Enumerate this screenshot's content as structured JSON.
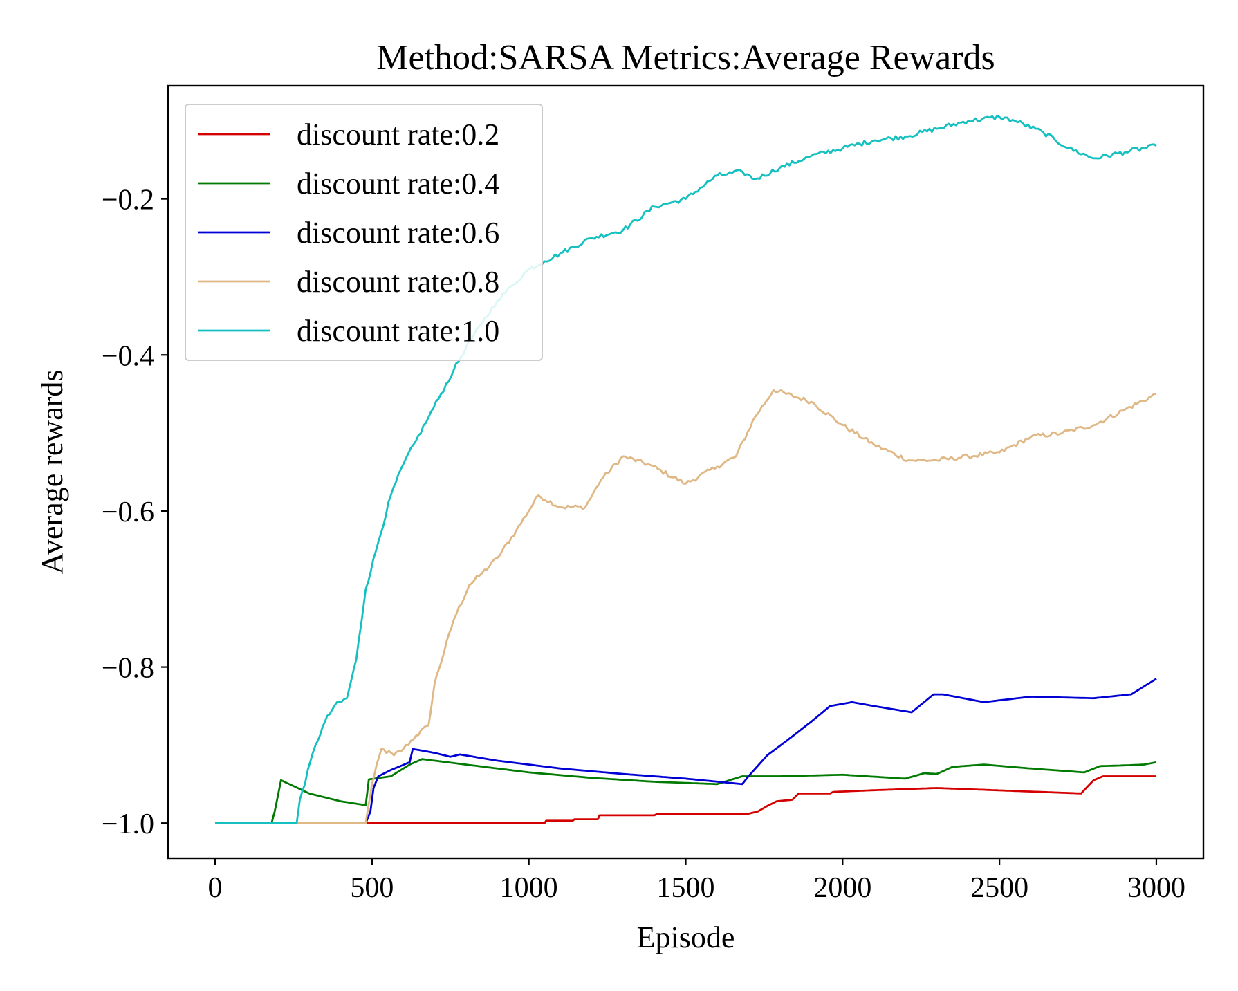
{
  "chart_data": {
    "type": "line",
    "title": "Method:SARSA   Metrics:Average Rewards",
    "xlabel": "Episode",
    "ylabel": "Average rewards",
    "xlim": [
      -150,
      3150
    ],
    "ylim": [
      -1.045,
      -0.055
    ],
    "xticks": [
      0,
      500,
      1000,
      1500,
      2000,
      2500,
      3000
    ],
    "xtick_labels": [
      "0",
      "500",
      "1000",
      "1500",
      "2000",
      "2500",
      "3000"
    ],
    "yticks": [
      -1.0,
      -0.8,
      -0.6,
      -0.4,
      -0.2
    ],
    "ytick_labels": [
      "−1.0",
      "−0.8",
      "−0.6",
      "−0.4",
      "−0.2"
    ],
    "grid": false,
    "legend_position": "top-left",
    "series": [
      {
        "name": "discount rate:0.2",
        "color": "#d40000",
        "points": [
          [
            0,
            -1.0
          ],
          [
            480,
            -1.0
          ],
          [
            1050,
            -1.0
          ],
          [
            1055,
            -0.997
          ],
          [
            1140,
            -0.997
          ],
          [
            1145,
            -0.995
          ],
          [
            1220,
            -0.995
          ],
          [
            1225,
            -0.99
          ],
          [
            1400,
            -0.99
          ],
          [
            1410,
            -0.988
          ],
          [
            1700,
            -0.988
          ],
          [
            1730,
            -0.985
          ],
          [
            1760,
            -0.978
          ],
          [
            1790,
            -0.972
          ],
          [
            1840,
            -0.97
          ],
          [
            1860,
            -0.962
          ],
          [
            1960,
            -0.962
          ],
          [
            1970,
            -0.96
          ],
          [
            2090,
            -0.958
          ],
          [
            2300,
            -0.955
          ],
          [
            2760,
            -0.962
          ],
          [
            2800,
            -0.945
          ],
          [
            2830,
            -0.94
          ],
          [
            3000,
            -0.94
          ]
        ]
      },
      {
        "name": "discount rate:0.4",
        "color": "#007a00",
        "points": [
          [
            0,
            -1.0
          ],
          [
            180,
            -1.0
          ],
          [
            190,
            -0.985
          ],
          [
            200,
            -0.965
          ],
          [
            210,
            -0.945
          ],
          [
            300,
            -0.962
          ],
          [
            400,
            -0.972
          ],
          [
            480,
            -0.977
          ],
          [
            490,
            -0.944
          ],
          [
            560,
            -0.94
          ],
          [
            620,
            -0.925
          ],
          [
            660,
            -0.918
          ],
          [
            800,
            -0.925
          ],
          [
            1000,
            -0.935
          ],
          [
            1200,
            -0.942
          ],
          [
            1400,
            -0.947
          ],
          [
            1600,
            -0.95
          ],
          [
            1680,
            -0.94
          ],
          [
            1800,
            -0.94
          ],
          [
            2000,
            -0.938
          ],
          [
            2200,
            -0.943
          ],
          [
            2260,
            -0.936
          ],
          [
            2300,
            -0.937
          ],
          [
            2350,
            -0.928
          ],
          [
            2450,
            -0.925
          ],
          [
            2600,
            -0.93
          ],
          [
            2770,
            -0.935
          ],
          [
            2820,
            -0.927
          ],
          [
            2900,
            -0.926
          ],
          [
            2960,
            -0.925
          ],
          [
            3000,
            -0.922
          ]
        ]
      },
      {
        "name": "discount rate:0.6",
        "color": "#0000d4",
        "points": [
          [
            0,
            -1.0
          ],
          [
            480,
            -1.0
          ],
          [
            495,
            -0.985
          ],
          [
            505,
            -0.955
          ],
          [
            520,
            -0.94
          ],
          [
            560,
            -0.932
          ],
          [
            620,
            -0.922
          ],
          [
            630,
            -0.905
          ],
          [
            700,
            -0.91
          ],
          [
            750,
            -0.915
          ],
          [
            780,
            -0.912
          ],
          [
            900,
            -0.92
          ],
          [
            1100,
            -0.93
          ],
          [
            1300,
            -0.937
          ],
          [
            1500,
            -0.943
          ],
          [
            1680,
            -0.95
          ],
          [
            1700,
            -0.94
          ],
          [
            1760,
            -0.913
          ],
          [
            1820,
            -0.895
          ],
          [
            1900,
            -0.87
          ],
          [
            1960,
            -0.85
          ],
          [
            2030,
            -0.845
          ],
          [
            2100,
            -0.85
          ],
          [
            2220,
            -0.858
          ],
          [
            2290,
            -0.835
          ],
          [
            2320,
            -0.835
          ],
          [
            2450,
            -0.845
          ],
          [
            2600,
            -0.838
          ],
          [
            2800,
            -0.84
          ],
          [
            2920,
            -0.835
          ],
          [
            2960,
            -0.825
          ],
          [
            3000,
            -0.815
          ]
        ]
      },
      {
        "name": "discount rate:0.8",
        "color": "#dfb885",
        "points": [
          [
            0,
            -1.0
          ],
          [
            480,
            -1.0
          ],
          [
            500,
            -0.95
          ],
          [
            530,
            -0.905
          ],
          [
            570,
            -0.913
          ],
          [
            600,
            -0.905
          ],
          [
            640,
            -0.888
          ],
          [
            680,
            -0.875
          ],
          [
            700,
            -0.82
          ],
          [
            760,
            -0.74
          ],
          [
            810,
            -0.695
          ],
          [
            850,
            -0.68
          ],
          [
            900,
            -0.66
          ],
          [
            960,
            -0.625
          ],
          [
            1030,
            -0.58
          ],
          [
            1100,
            -0.595
          ],
          [
            1180,
            -0.595
          ],
          [
            1230,
            -0.56
          ],
          [
            1300,
            -0.53
          ],
          [
            1380,
            -0.54
          ],
          [
            1500,
            -0.565
          ],
          [
            1600,
            -0.543
          ],
          [
            1660,
            -0.53
          ],
          [
            1720,
            -0.48
          ],
          [
            1780,
            -0.445
          ],
          [
            1900,
            -0.46
          ],
          [
            2000,
            -0.49
          ],
          [
            2100,
            -0.515
          ],
          [
            2210,
            -0.535
          ],
          [
            2300,
            -0.535
          ],
          [
            2400,
            -0.53
          ],
          [
            2500,
            -0.525
          ],
          [
            2600,
            -0.505
          ],
          [
            2700,
            -0.5
          ],
          [
            2800,
            -0.49
          ],
          [
            2900,
            -0.47
          ],
          [
            3000,
            -0.45
          ]
        ]
      },
      {
        "name": "discount rate:1.0",
        "color": "#16c0c0",
        "points": [
          [
            0,
            -1.0
          ],
          [
            260,
            -1.0
          ],
          [
            270,
            -0.97
          ],
          [
            320,
            -0.9
          ],
          [
            350,
            -0.87
          ],
          [
            380,
            -0.85
          ],
          [
            420,
            -0.84
          ],
          [
            450,
            -0.79
          ],
          [
            480,
            -0.7
          ],
          [
            520,
            -0.64
          ],
          [
            560,
            -0.58
          ],
          [
            600,
            -0.54
          ],
          [
            640,
            -0.51
          ],
          [
            680,
            -0.48
          ],
          [
            720,
            -0.45
          ],
          [
            760,
            -0.42
          ],
          [
            800,
            -0.39
          ],
          [
            850,
            -0.36
          ],
          [
            900,
            -0.33
          ],
          [
            950,
            -0.31
          ],
          [
            1000,
            -0.29
          ],
          [
            1050,
            -0.28
          ],
          [
            1100,
            -0.27
          ],
          [
            1200,
            -0.25
          ],
          [
            1300,
            -0.24
          ],
          [
            1400,
            -0.21
          ],
          [
            1500,
            -0.2
          ],
          [
            1600,
            -0.17
          ],
          [
            1680,
            -0.165
          ],
          [
            1720,
            -0.175
          ],
          [
            1800,
            -0.16
          ],
          [
            1900,
            -0.145
          ],
          [
            2000,
            -0.135
          ],
          [
            2100,
            -0.125
          ],
          [
            2200,
            -0.12
          ],
          [
            2300,
            -0.11
          ],
          [
            2400,
            -0.1
          ],
          [
            2500,
            -0.095
          ],
          [
            2550,
            -0.1
          ],
          [
            2640,
            -0.115
          ],
          [
            2720,
            -0.135
          ],
          [
            2800,
            -0.148
          ],
          [
            2900,
            -0.14
          ],
          [
            3000,
            -0.132
          ]
        ]
      }
    ]
  }
}
